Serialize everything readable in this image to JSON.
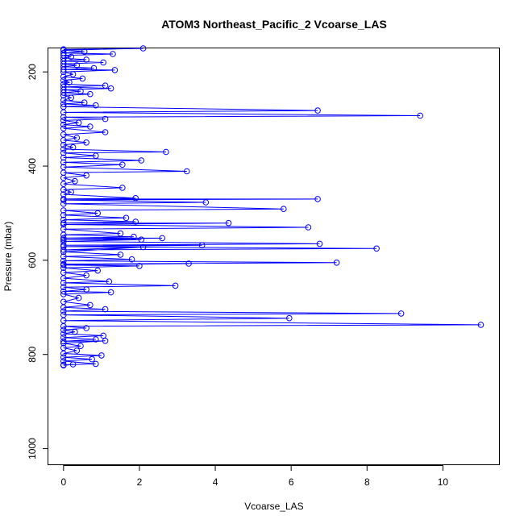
{
  "chart_data": {
    "type": "line",
    "title": "ATOM3 Northeast_Pacific_2 Vcoarse_LAS",
    "xlabel": "Vcoarse_LAS",
    "ylabel": "Pressure (mbar)",
    "xlim": [
      -0.4,
      11.5
    ],
    "ylim": [
      1035,
      150
    ],
    "y_reversed": true,
    "x_ticks": [
      0,
      2,
      4,
      6,
      8,
      10
    ],
    "y_ticks": [
      200,
      400,
      600,
      800,
      1000
    ],
    "colors": {
      "series": "#0000ff"
    },
    "grid": false,
    "series": [
      {
        "marker": "open-circle",
        "points": [
          [
            0.0,
            152
          ],
          [
            2.1,
            150
          ],
          [
            0.0,
            154
          ],
          [
            0.55,
            157
          ],
          [
            0.0,
            160
          ],
          [
            1.3,
            162
          ],
          [
            0.0,
            165
          ],
          [
            0.2,
            168
          ],
          [
            0.0,
            171
          ],
          [
            0.6,
            174
          ],
          [
            0.0,
            177
          ],
          [
            1.05,
            180
          ],
          [
            0.0,
            183
          ],
          [
            0.35,
            186
          ],
          [
            0.0,
            189
          ],
          [
            0.8,
            192
          ],
          [
            0.0,
            195
          ],
          [
            1.35,
            196
          ],
          [
            0.0,
            200
          ],
          [
            0.25,
            205
          ],
          [
            0.0,
            210
          ],
          [
            0.5,
            214
          ],
          [
            0.0,
            218
          ],
          [
            0.15,
            222
          ],
          [
            0.0,
            226
          ],
          [
            1.1,
            229
          ],
          [
            0.0,
            232
          ],
          [
            1.25,
            235
          ],
          [
            0.0,
            238
          ],
          [
            0.45,
            241
          ],
          [
            0.0,
            244
          ],
          [
            0.7,
            247
          ],
          [
            0.0,
            250
          ],
          [
            0.2,
            255
          ],
          [
            0.0,
            260
          ],
          [
            0.55,
            265
          ],
          [
            0.0,
            268
          ],
          [
            0.85,
            271
          ],
          [
            0.0,
            274
          ],
          [
            6.7,
            282
          ],
          [
            0.0,
            286
          ],
          [
            9.4,
            293
          ],
          [
            0.0,
            296
          ],
          [
            1.1,
            300
          ],
          [
            0.0,
            303
          ],
          [
            0.4,
            308
          ],
          [
            0.0,
            312
          ],
          [
            0.7,
            316
          ],
          [
            0.0,
            320
          ],
          [
            1.1,
            328
          ],
          [
            0.0,
            333
          ],
          [
            0.35,
            340
          ],
          [
            0.0,
            345
          ],
          [
            0.6,
            350
          ],
          [
            0.0,
            355
          ],
          [
            0.25,
            360
          ],
          [
            0.0,
            364
          ],
          [
            2.7,
            370
          ],
          [
            0.0,
            372
          ],
          [
            0.85,
            378
          ],
          [
            0.0,
            382
          ],
          [
            2.05,
            388
          ],
          [
            0.0,
            392
          ],
          [
            1.55,
            397
          ],
          [
            0.0,
            402
          ],
          [
            3.25,
            411
          ],
          [
            0.0,
            414
          ],
          [
            0.6,
            420
          ],
          [
            0.0,
            425
          ],
          [
            0.3,
            432
          ],
          [
            0.0,
            438
          ],
          [
            1.55,
            446
          ],
          [
            0.0,
            450
          ],
          [
            0.2,
            455
          ],
          [
            0.0,
            460
          ],
          [
            1.9,
            468
          ],
          [
            0.0,
            470
          ],
          [
            6.7,
            470
          ],
          [
            0.0,
            472
          ],
          [
            3.75,
            477
          ],
          [
            0.0,
            480
          ],
          [
            5.8,
            491
          ],
          [
            0.0,
            494
          ],
          [
            0.9,
            500
          ],
          [
            0.0,
            504
          ],
          [
            1.65,
            510
          ],
          [
            0.0,
            514
          ],
          [
            1.9,
            518
          ],
          [
            0.0,
            521
          ],
          [
            4.35,
            521
          ],
          [
            0.0,
            524
          ],
          [
            6.45,
            530
          ],
          [
            0.0,
            534
          ],
          [
            1.5,
            543
          ],
          [
            0.0,
            546
          ],
          [
            1.85,
            550
          ],
          [
            0.0,
            553
          ],
          [
            2.6,
            553
          ],
          [
            0.0,
            556
          ],
          [
            2.05,
            556
          ],
          [
            0.0,
            560
          ],
          [
            6.75,
            565
          ],
          [
            0.0,
            568
          ],
          [
            3.65,
            568
          ],
          [
            0.0,
            571
          ],
          [
            8.25,
            575
          ],
          [
            0.0,
            578
          ],
          [
            2.1,
            572
          ],
          [
            0.0,
            582
          ],
          [
            1.5,
            588
          ],
          [
            0.0,
            592
          ],
          [
            1.8,
            598
          ],
          [
            0.0,
            601
          ],
          [
            7.2,
            605
          ],
          [
            0.0,
            608
          ],
          [
            3.3,
            607
          ],
          [
            0.0,
            610
          ],
          [
            2.0,
            612
          ],
          [
            0.0,
            616
          ],
          [
            0.9,
            622
          ],
          [
            0.0,
            626
          ],
          [
            0.6,
            632
          ],
          [
            0.0,
            638
          ],
          [
            1.2,
            645
          ],
          [
            0.0,
            648
          ],
          [
            2.95,
            654
          ],
          [
            0.0,
            657
          ],
          [
            0.6,
            662
          ],
          [
            0.0,
            666
          ],
          [
            1.25,
            668
          ],
          [
            0.0,
            672
          ],
          [
            0.4,
            680
          ],
          [
            0.0,
            688
          ],
          [
            0.7,
            695
          ],
          [
            0.0,
            700
          ],
          [
            1.1,
            704
          ],
          [
            0.0,
            708
          ],
          [
            8.9,
            713
          ],
          [
            0.0,
            716
          ],
          [
            5.95,
            723
          ],
          [
            0.0,
            728
          ],
          [
            11.0,
            737
          ],
          [
            0.0,
            740
          ],
          [
            0.6,
            744
          ],
          [
            0.0,
            748
          ],
          [
            0.3,
            752
          ],
          [
            0.0,
            756
          ],
          [
            1.05,
            760
          ],
          [
            0.0,
            764
          ],
          [
            0.85,
            768
          ],
          [
            0.0,
            772
          ],
          [
            1.1,
            771
          ],
          [
            0.0,
            776
          ],
          [
            0.45,
            782
          ],
          [
            0.0,
            786
          ],
          [
            0.35,
            792
          ],
          [
            0.0,
            798
          ],
          [
            1.0,
            802
          ],
          [
            0.0,
            806
          ],
          [
            0.75,
            810
          ],
          [
            0.0,
            814
          ],
          [
            0.85,
            820
          ],
          [
            0.0,
            822
          ],
          [
            0.25,
            821
          ],
          [
            0.0,
            823
          ]
        ]
      }
    ]
  }
}
